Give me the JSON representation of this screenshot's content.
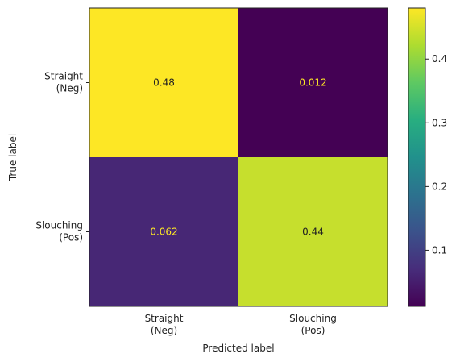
{
  "chart_data": {
    "type": "heatmap",
    "title": "",
    "xlabel": "Predicted label",
    "ylabel": "True label",
    "x_categories": [
      "Straight\n(Neg)",
      "Slouching\n(Pos)"
    ],
    "y_categories": [
      "Straight\n(Neg)",
      "Slouching\n(Pos)"
    ],
    "values": [
      [
        0.48,
        0.012
      ],
      [
        0.062,
        0.44
      ]
    ],
    "value_labels": [
      [
        "0.48",
        "0.012"
      ],
      [
        "0.062",
        "0.44"
      ]
    ],
    "colormap": "viridis",
    "colorbar": {
      "vmin": 0.012,
      "vmax": 0.48,
      "ticks": [
        0.1,
        0.2,
        0.3,
        0.4
      ],
      "tick_labels": [
        "0.1",
        "0.2",
        "0.3",
        "0.4"
      ]
    },
    "grid": false
  }
}
